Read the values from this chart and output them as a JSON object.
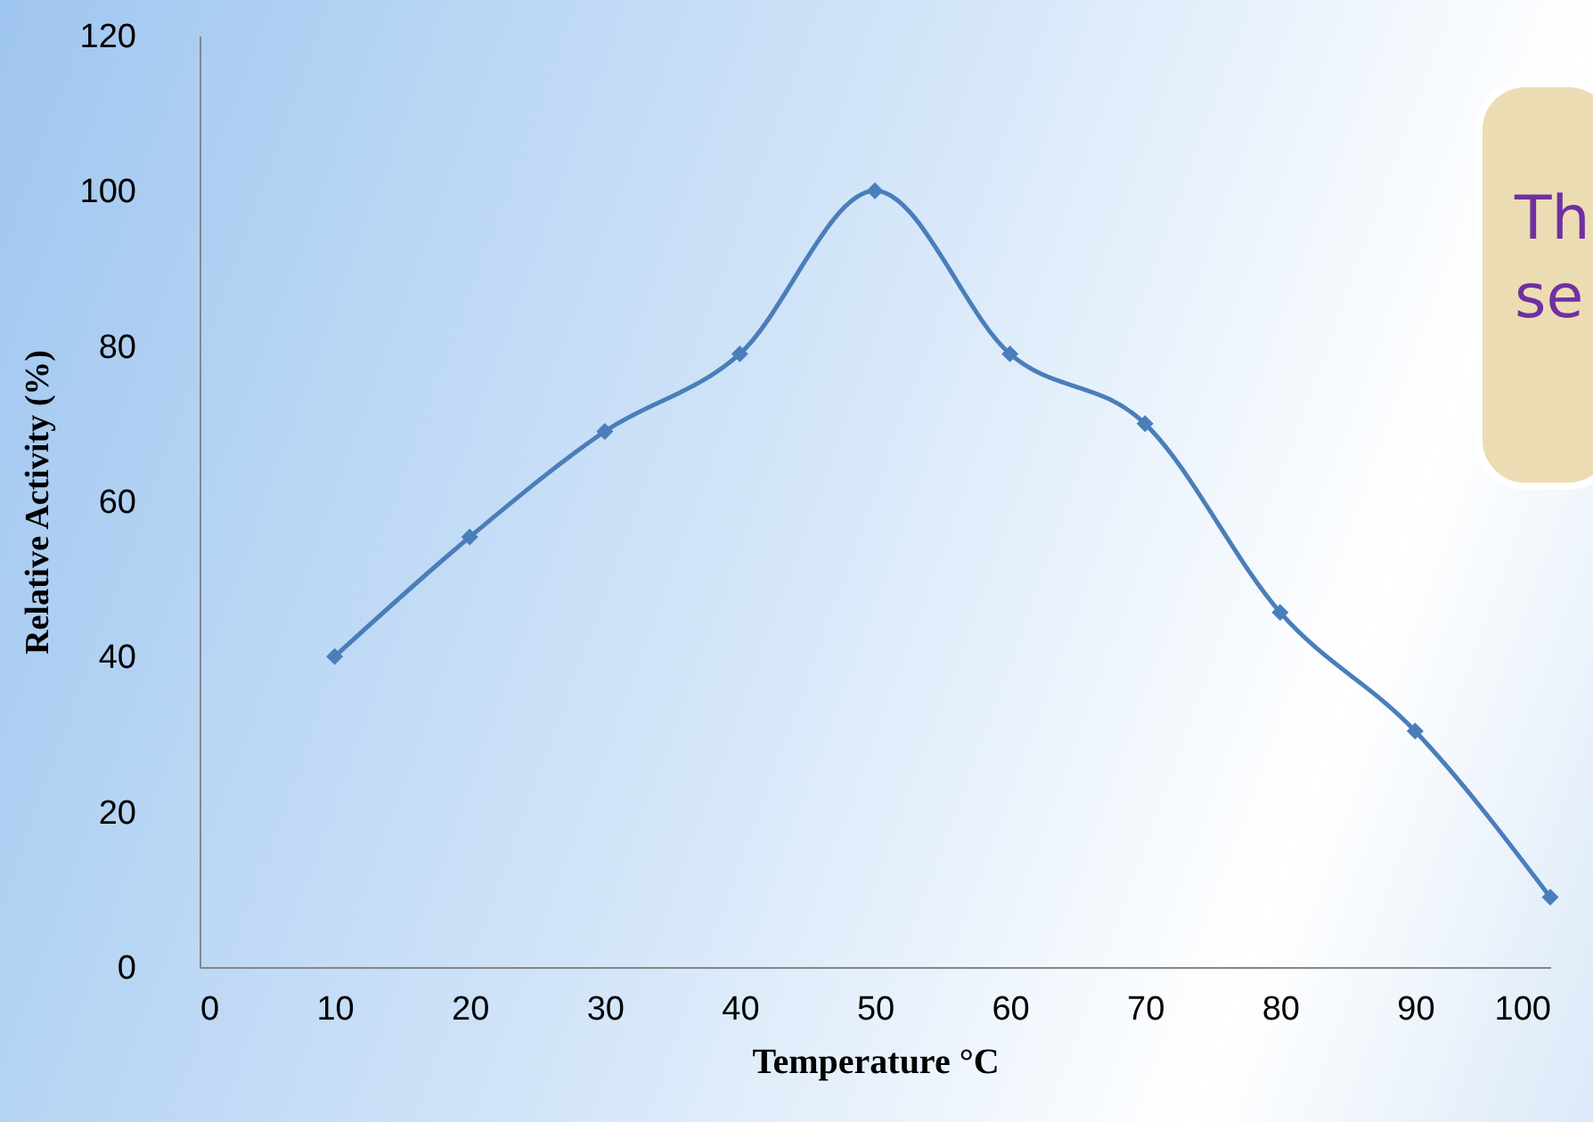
{
  "chart_data": {
    "type": "line",
    "xlabel": "Temperature °C",
    "ylabel": "Relative Activity (%)",
    "x": [
      10,
      20,
      30,
      40,
      50,
      60,
      70,
      80,
      90,
      100
    ],
    "series": [
      {
        "color": "#4a7ebb",
        "values": [
          40,
          55.4,
          69,
          79,
          100,
          79,
          70,
          45.7,
          30.4,
          9
        ]
      }
    ],
    "xlim": [
      0,
      100
    ],
    "xticks": [
      0,
      10,
      20,
      30,
      40,
      50,
      60,
      70,
      80,
      90,
      100
    ],
    "ylim": [
      0,
      120
    ],
    "yticks": [
      0,
      20,
      40,
      60,
      80,
      100,
      120
    ],
    "grid": false,
    "marker": "diamond",
    "line_style": "solid",
    "annotations": [
      "Th",
      "se"
    ]
  }
}
